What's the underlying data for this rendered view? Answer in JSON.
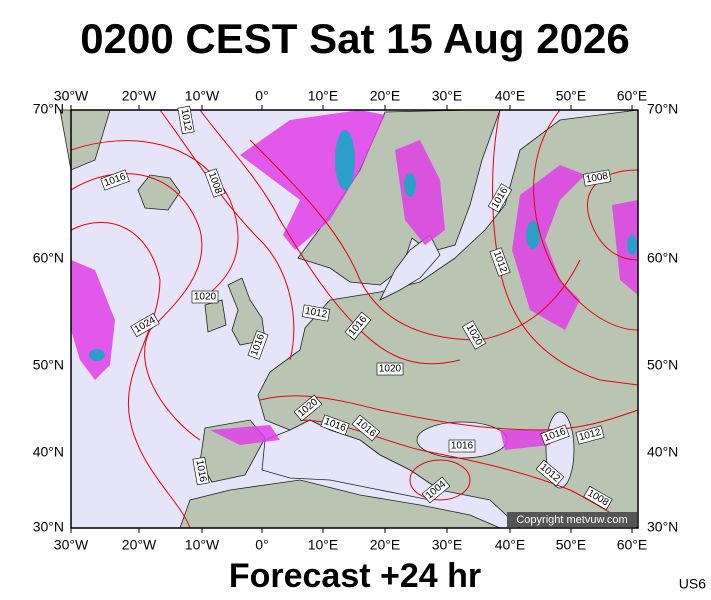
{
  "title": "0200 CEST Sat 15 Aug 2026",
  "longitude_labels": [
    "30°W",
    "20°W",
    "10°W",
    "0°",
    "10°E",
    "20°E",
    "30°E",
    "40°E",
    "50°E",
    "60°E"
  ],
  "latitude_labels": [
    "70°N",
    "60°N",
    "50°N",
    "40°N",
    "30°N"
  ],
  "isobar_labels": [
    "1012",
    "1016",
    "1008",
    "1020",
    "1024",
    "1016",
    "1012",
    "1016",
    "1020",
    "1020",
    "1016",
    "1016",
    "1016",
    "1016",
    "1012",
    "1012",
    "1008",
    "1016",
    "1012",
    "1020",
    "1004",
    "1016",
    "1008"
  ],
  "copyright": "Copyright metvuw.com",
  "footer": "Forecast +24 hr",
  "code": "US6"
}
